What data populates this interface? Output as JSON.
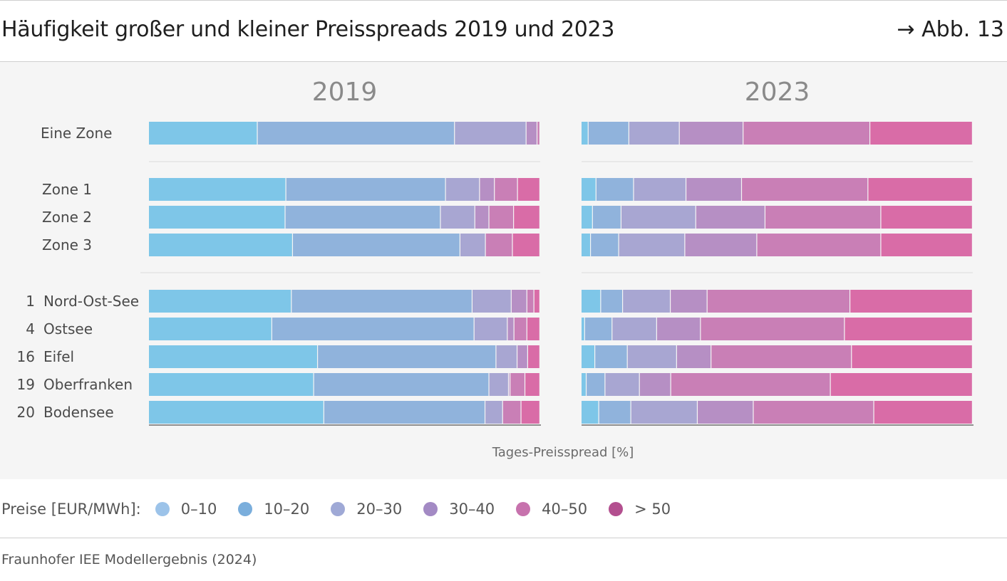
{
  "header": {
    "title": "Häufigkeit großer und kleiner Preisspreads 2019 und 2023",
    "figure_ref": "→ Abb. 13"
  },
  "legend": {
    "label": "Preise [EUR/MWh]:",
    "items": [
      {
        "label": "0–10",
        "color": "#9cc3e9"
      },
      {
        "label": "10–20",
        "color": "#7aaedc"
      },
      {
        "label": "20–30",
        "color": "#9fa9d6"
      },
      {
        "label": "30–40",
        "color": "#a38ac4"
      },
      {
        "label": "40–50",
        "color": "#c772ad"
      },
      {
        "label": "> 50",
        "color": "#b34f8f"
      }
    ]
  },
  "source": "Fraunhofer IEE Modellergebnis (2024)",
  "chart_data": {
    "type": "bar",
    "orientation": "horizontal",
    "stacked": true,
    "xlabel": "Tages-Preisspread [%]",
    "xlim": [
      0,
      100
    ],
    "segment_colors": [
      "#7ec6e8",
      "#90b3dc",
      "#a8a6d2",
      "#b68fc4",
      "#c97fb6",
      "#d96ca7"
    ],
    "series_names": [
      "0–10",
      "10–20",
      "20–30",
      "30–40",
      "40–50",
      "> 50"
    ],
    "categories": [
      {
        "prefix": "",
        "label": "Eine Zone",
        "group": 0
      },
      {
        "prefix": "",
        "label": "Zone 1",
        "group": 1
      },
      {
        "prefix": "",
        "label": "Zone 2",
        "group": 1
      },
      {
        "prefix": "",
        "label": "Zone 3",
        "group": 1
      },
      {
        "prefix": "1",
        "label": "Nord-Ost-See",
        "group": 2
      },
      {
        "prefix": "4",
        "label": "Ostsee",
        "group": 2
      },
      {
        "prefix": "16",
        "label": "Eifel",
        "group": 2
      },
      {
        "prefix": "19",
        "label": "Oberfranken",
        "group": 2
      },
      {
        "prefix": "20",
        "label": "Bodensee",
        "group": 2
      }
    ],
    "panels": [
      {
        "title": "2019",
        "values": [
          [
            27.8,
            50.4,
            18.3,
            2.8,
            0.7,
            0.0
          ],
          [
            35.1,
            40.8,
            8.7,
            3.8,
            5.9,
            5.7
          ],
          [
            34.9,
            39.7,
            8.8,
            3.6,
            6.3,
            6.7
          ],
          [
            36.8,
            42.8,
            6.5,
            0.0,
            6.9,
            7.0
          ],
          [
            36.5,
            46.2,
            10.0,
            4.0,
            1.8,
            1.5
          ],
          [
            31.5,
            51.7,
            8.5,
            1.7,
            3.3,
            3.3
          ],
          [
            43.2,
            45.6,
            5.4,
            2.7,
            0.0,
            3.1
          ],
          [
            42.2,
            44.8,
            5.0,
            0.4,
            3.8,
            3.8
          ],
          [
            44.8,
            41.2,
            4.5,
            0.0,
            4.7,
            4.8
          ]
        ]
      },
      {
        "title": "2023",
        "values": [
          [
            1.8,
            10.4,
            12.9,
            16.3,
            32.4,
            26.2
          ],
          [
            3.8,
            9.6,
            13.4,
            14.2,
            32.3,
            26.7
          ],
          [
            2.9,
            7.3,
            19.1,
            17.7,
            29.6,
            23.4
          ],
          [
            2.4,
            7.2,
            16.9,
            18.4,
            31.7,
            23.4
          ],
          [
            5.0,
            5.6,
            12.2,
            9.4,
            36.5,
            31.3
          ],
          [
            0.9,
            7.0,
            11.4,
            11.2,
            36.8,
            32.7
          ],
          [
            3.5,
            8.3,
            12.6,
            8.8,
            35.9,
            30.9
          ],
          [
            1.3,
            4.8,
            8.8,
            8.0,
            40.8,
            36.3
          ],
          [
            4.5,
            8.2,
            17.0,
            14.3,
            30.8,
            25.2
          ]
        ]
      }
    ]
  }
}
